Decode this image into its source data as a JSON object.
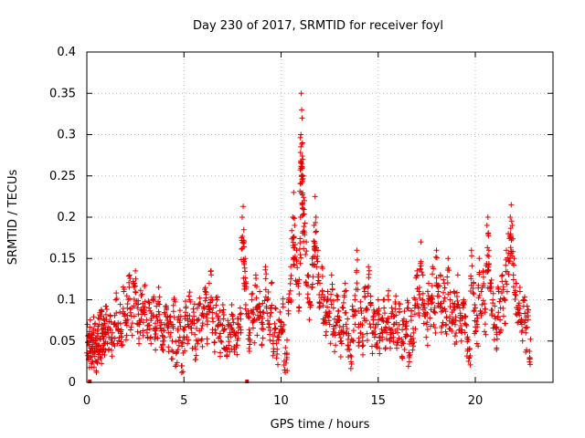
{
  "chart_data": {
    "type": "scatter",
    "title": "Day 230 of 2017, SRMTID for receiver foyl",
    "xlabel": "GPS time / hours",
    "ylabel": "SRMTID / TECUs",
    "xlim": [
      0,
      24
    ],
    "ylim": [
      0,
      0.4
    ],
    "xticks": [
      0,
      5,
      10,
      15,
      20
    ],
    "xtick_labels": [
      "0",
      "5",
      "10",
      "15",
      "20"
    ],
    "yticks": [
      0,
      0.05,
      0.1,
      0.15,
      0.2,
      0.25,
      0.3,
      0.35,
      0.4
    ],
    "ytick_labels": [
      "0",
      "0.05",
      "0.1",
      "0.15",
      "0.2",
      "0.25",
      "0.3",
      "0.35",
      "0.4"
    ],
    "grid": true,
    "marker": "+",
    "color": "#e00000",
    "series": [
      {
        "name": "SRMTID",
        "points": [
          [
            0.05,
            0.048
          ],
          [
            0.1,
            0.035
          ],
          [
            0.15,
            0.057
          ],
          [
            0.2,
            0.03
          ],
          [
            0.25,
            0.055
          ],
          [
            0.3,
            0.042
          ],
          [
            0.35,
            0.06
          ],
          [
            0.4,
            0.038
          ],
          [
            0.45,
            0.05
          ],
          [
            0.5,
            0.025
          ],
          [
            0.55,
            0.062
          ],
          [
            0.6,
            0.045
          ],
          [
            0.65,
            0.07
          ],
          [
            0.7,
            0.052
          ],
          [
            0.75,
            0.088
          ],
          [
            0.8,
            0.04
          ],
          [
            0.85,
            0.065
          ],
          [
            0.9,
            0.075
          ],
          [
            0.95,
            0.058
          ],
          [
            1.0,
            0.092
          ],
          [
            1.1,
            0.06
          ],
          [
            1.2,
            0.08
          ],
          [
            1.3,
            0.05
          ],
          [
            1.4,
            0.07
          ],
          [
            1.5,
            0.1
          ],
          [
            1.6,
            0.065
          ],
          [
            1.7,
            0.085
          ],
          [
            1.8,
            0.055
          ],
          [
            1.9,
            0.11
          ],
          [
            2.0,
            0.075
          ],
          [
            2.1,
            0.095
          ],
          [
            2.2,
            0.13
          ],
          [
            2.3,
            0.08
          ],
          [
            2.4,
            0.12
          ],
          [
            2.5,
            0.135
          ],
          [
            2.6,
            0.09
          ],
          [
            2.7,
            0.07
          ],
          [
            2.8,
            0.105
          ],
          [
            2.9,
            0.085
          ],
          [
            3.0,
            0.118
          ],
          [
            3.1,
            0.06
          ],
          [
            3.2,
            0.09
          ],
          [
            3.3,
            0.075
          ],
          [
            3.4,
            0.1
          ],
          [
            3.5,
            0.055
          ],
          [
            3.6,
            0.08
          ],
          [
            3.7,
            0.115
          ],
          [
            3.8,
            0.065
          ],
          [
            3.9,
            0.045
          ],
          [
            4.0,
            0.07
          ],
          [
            4.1,
            0.09
          ],
          [
            4.2,
            0.06
          ],
          [
            4.3,
            0.08
          ],
          [
            4.4,
            0.05
          ],
          [
            4.5,
            0.1
          ],
          [
            4.6,
            0.035
          ],
          [
            4.7,
            0.065
          ],
          [
            4.8,
            0.075
          ],
          [
            4.9,
            0.02
          ],
          [
            5.0,
            0.055
          ],
          [
            5.1,
            0.09
          ],
          [
            5.2,
            0.07
          ],
          [
            5.3,
            0.1
          ],
          [
            5.4,
            0.06
          ],
          [
            5.5,
            0.085
          ],
          [
            5.6,
            0.04
          ],
          [
            5.7,
            0.075
          ],
          [
            5.8,
            0.095
          ],
          [
            5.9,
            0.065
          ],
          [
            6.0,
            0.08
          ],
          [
            6.1,
            0.11
          ],
          [
            6.2,
            0.07
          ],
          [
            6.3,
            0.12
          ],
          [
            6.4,
            0.135
          ],
          [
            6.5,
            0.09
          ],
          [
            6.6,
            0.06
          ],
          [
            6.7,
            0.1
          ],
          [
            6.8,
            0.075
          ],
          [
            6.9,
            0.05
          ],
          [
            7.0,
            0.085
          ],
          [
            7.1,
            0.065
          ],
          [
            7.2,
            0.04
          ],
          [
            7.3,
            0.07
          ],
          [
            7.4,
            0.055
          ],
          [
            7.5,
            0.08
          ],
          [
            7.6,
            0.06
          ],
          [
            7.7,
            0.045
          ],
          [
            7.8,
            0.07
          ],
          [
            7.9,
            0.09
          ],
          [
            8.0,
            0.2
          ],
          [
            8.05,
            0.213
          ],
          [
            8.1,
            0.17
          ],
          [
            8.15,
            0.15
          ],
          [
            8.2,
            0.12
          ],
          [
            8.3,
            0.08
          ],
          [
            8.4,
            0.06
          ],
          [
            8.5,
            0.1
          ],
          [
            8.6,
            0.075
          ],
          [
            8.7,
            0.13
          ],
          [
            8.8,
            0.09
          ],
          [
            8.9,
            0.11
          ],
          [
            9.0,
            0.065
          ],
          [
            9.1,
            0.085
          ],
          [
            9.2,
            0.14
          ],
          [
            9.3,
            0.1
          ],
          [
            9.4,
            0.07
          ],
          [
            9.5,
            0.12
          ],
          [
            9.6,
            0.05
          ],
          [
            9.7,
            0.09
          ],
          [
            9.8,
            0.04
          ],
          [
            9.9,
            0.075
          ],
          [
            10.0,
            0.06
          ],
          [
            10.1,
            0.095
          ],
          [
            10.2,
            0.015
          ],
          [
            10.3,
            0.03
          ],
          [
            10.4,
            0.1
          ],
          [
            10.5,
            0.14
          ],
          [
            10.6,
            0.2
          ],
          [
            10.65,
            0.23
          ],
          [
            10.7,
            0.19
          ],
          [
            10.8,
            0.16
          ],
          [
            10.9,
            0.12
          ],
          [
            11.0,
            0.2
          ],
          [
            11.02,
            0.3
          ],
          [
            11.04,
            0.35
          ],
          [
            11.06,
            0.33
          ],
          [
            11.08,
            0.32
          ],
          [
            11.1,
            0.29
          ],
          [
            11.12,
            0.27
          ],
          [
            11.14,
            0.25
          ],
          [
            11.2,
            0.22
          ],
          [
            11.3,
            0.17
          ],
          [
            11.4,
            0.13
          ],
          [
            11.5,
            0.095
          ],
          [
            11.6,
            0.15
          ],
          [
            11.7,
            0.19
          ],
          [
            11.75,
            0.225
          ],
          [
            11.8,
            0.2
          ],
          [
            11.9,
            0.16
          ],
          [
            12.0,
            0.12
          ],
          [
            12.1,
            0.14
          ],
          [
            12.2,
            0.1
          ],
          [
            12.3,
            0.085
          ],
          [
            12.4,
            0.11
          ],
          [
            12.5,
            0.07
          ],
          [
            12.6,
            0.13
          ],
          [
            12.7,
            0.09
          ],
          [
            12.8,
            0.06
          ],
          [
            12.9,
            0.1
          ],
          [
            13.0,
            0.075
          ],
          [
            13.1,
            0.05
          ],
          [
            13.2,
            0.09
          ],
          [
            13.3,
            0.12
          ],
          [
            13.4,
            0.065
          ],
          [
            13.5,
            0.04
          ],
          [
            13.6,
            0.025
          ],
          [
            13.7,
            0.08
          ],
          [
            13.8,
            0.1
          ],
          [
            13.9,
            0.16
          ],
          [
            14.0,
            0.07
          ],
          [
            14.1,
            0.09
          ],
          [
            14.2,
            0.05
          ],
          [
            14.3,
            0.11
          ],
          [
            14.4,
            0.075
          ],
          [
            14.5,
            0.14
          ],
          [
            14.6,
            0.095
          ],
          [
            14.7,
            0.06
          ],
          [
            14.8,
            0.085
          ],
          [
            14.9,
            0.07
          ],
          [
            15.0,
            0.1
          ],
          [
            15.1,
            0.055
          ],
          [
            15.2,
            0.075
          ],
          [
            15.3,
            0.09
          ],
          [
            15.4,
            0.065
          ],
          [
            15.5,
            0.105
          ],
          [
            15.6,
            0.05
          ],
          [
            15.7,
            0.08
          ],
          [
            15.8,
            0.07
          ],
          [
            15.9,
            0.095
          ],
          [
            16.0,
            0.06
          ],
          [
            16.1,
            0.085
          ],
          [
            16.2,
            0.045
          ],
          [
            16.3,
            0.07
          ],
          [
            16.4,
            0.055
          ],
          [
            16.5,
            0.09
          ],
          [
            16.6,
            0.03
          ],
          [
            16.7,
            0.075
          ],
          [
            16.8,
            0.065
          ],
          [
            16.9,
            0.1
          ],
          [
            17.0,
            0.135
          ],
          [
            17.1,
            0.11
          ],
          [
            17.2,
            0.17
          ],
          [
            17.3,
            0.13
          ],
          [
            17.4,
            0.09
          ],
          [
            17.5,
            0.07
          ],
          [
            17.6,
            0.12
          ],
          [
            17.7,
            0.1
          ],
          [
            17.8,
            0.14
          ],
          [
            17.9,
            0.085
          ],
          [
            18.0,
            0.16
          ],
          [
            18.1,
            0.11
          ],
          [
            18.2,
            0.13
          ],
          [
            18.3,
            0.09
          ],
          [
            18.4,
            0.12
          ],
          [
            18.5,
            0.07
          ],
          [
            18.6,
            0.15
          ],
          [
            18.7,
            0.1
          ],
          [
            18.8,
            0.085
          ],
          [
            18.9,
            0.11
          ],
          [
            19.0,
            0.075
          ],
          [
            19.1,
            0.13
          ],
          [
            19.2,
            0.09
          ],
          [
            19.3,
            0.06
          ],
          [
            19.4,
            0.1
          ],
          [
            19.5,
            0.08
          ],
          [
            19.6,
            0.055
          ],
          [
            19.7,
            0.03
          ],
          [
            19.8,
            0.16
          ],
          [
            19.9,
            0.12
          ],
          [
            20.0,
            0.09
          ],
          [
            20.1,
            0.07
          ],
          [
            20.2,
            0.15
          ],
          [
            20.3,
            0.11
          ],
          [
            20.4,
            0.135
          ],
          [
            20.5,
            0.085
          ],
          [
            20.6,
            0.19
          ],
          [
            20.65,
            0.2
          ],
          [
            20.7,
            0.16
          ],
          [
            20.8,
            0.12
          ],
          [
            20.9,
            0.1
          ],
          [
            21.0,
            0.08
          ],
          [
            21.1,
            0.065
          ],
          [
            21.2,
            0.11
          ],
          [
            21.3,
            0.09
          ],
          [
            21.4,
            0.13
          ],
          [
            21.5,
            0.1
          ],
          [
            21.6,
            0.16
          ],
          [
            21.7,
            0.18
          ],
          [
            21.8,
            0.2
          ],
          [
            21.85,
            0.215
          ],
          [
            21.9,
            0.19
          ],
          [
            22.0,
            0.15
          ],
          [
            22.1,
            0.12
          ],
          [
            22.2,
            0.09
          ],
          [
            22.3,
            0.11
          ],
          [
            22.4,
            0.07
          ],
          [
            22.5,
            0.1
          ],
          [
            22.6,
            0.06
          ],
          [
            22.7,
            0.085
          ],
          [
            22.8,
            0.03
          ]
        ]
      }
    ]
  }
}
